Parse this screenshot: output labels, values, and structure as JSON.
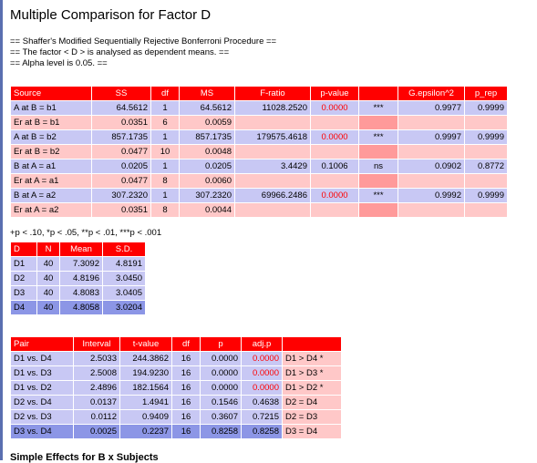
{
  "title": "Multiple Comparison for Factor D",
  "notes": [
    "== Shaffer's Modified Sequentially Rejective Bonferroni Procedure ==",
    "== The factor < D > is analysed as dependent means. ==",
    "== Alpha level is 0.05. =="
  ],
  "anova": {
    "headers": [
      "Source",
      "SS",
      "df",
      "MS",
      "F-ratio",
      "p-value",
      "",
      "G.epsilon^2",
      "p_rep"
    ],
    "rows": [
      [
        "A at B = b1",
        "64.5612",
        "1",
        "64.5612",
        "11028.2520",
        "0.0000",
        "***",
        "0.9977",
        "0.9999"
      ],
      [
        "Er at B = b1",
        "0.0351",
        "6",
        "0.0059",
        "",
        "",
        "",
        "",
        ""
      ],
      [
        "A at B = b2",
        "857.1735",
        "1",
        "857.1735",
        "179575.4618",
        "0.0000",
        "***",
        "0.9997",
        "0.9999"
      ],
      [
        "Er at B = b2",
        "0.0477",
        "10",
        "0.0048",
        "",
        "",
        "",
        "",
        ""
      ],
      [
        "B at A = a1",
        "0.0205",
        "1",
        "0.0205",
        "3.4429",
        "0.1006",
        "ns",
        "0.0902",
        "0.8772"
      ],
      [
        "Er at A = a1",
        "0.0477",
        "8",
        "0.0060",
        "",
        "",
        "",
        "",
        ""
      ],
      [
        "B at A = a2",
        "307.2320",
        "1",
        "307.2320",
        "69966.2486",
        "0.0000",
        "***",
        "0.9992",
        "0.9999"
      ],
      [
        "Er at A = a2",
        "0.0351",
        "8",
        "0.0044",
        "",
        "",
        "",
        "",
        ""
      ]
    ]
  },
  "footnote": "+p < .10, *p < .05, **p < .01, ***p < .001",
  "descriptive": {
    "headers": [
      "D",
      "N",
      "Mean",
      "S.D."
    ],
    "rows": [
      [
        "D1",
        "40",
        "7.3092",
        "4.8191"
      ],
      [
        "D2",
        "40",
        "4.8196",
        "3.0450"
      ],
      [
        "D3",
        "40",
        "4.8083",
        "3.0405"
      ],
      [
        "D4",
        "40",
        "4.8058",
        "3.0204"
      ]
    ]
  },
  "pairs": {
    "headers": [
      "Pair",
      "Interval",
      "t-value",
      "df",
      "p",
      "adj.p",
      ""
    ],
    "rows": [
      [
        "D1 vs. D4",
        "2.5033",
        "244.3862",
        "16",
        "0.0000",
        "0.0000",
        "D1 > D4 *"
      ],
      [
        "D1 vs. D3",
        "2.5008",
        "194.9230",
        "16",
        "0.0000",
        "0.0000",
        "D1 > D3 *"
      ],
      [
        "D1 vs. D2",
        "2.4896",
        "182.1564",
        "16",
        "0.0000",
        "0.0000",
        "D1 > D2 *"
      ],
      [
        "D2 vs. D4",
        "0.0137",
        "1.4941",
        "16",
        "0.1546",
        "0.4638",
        "D2 = D4"
      ],
      [
        "D2 vs. D3",
        "0.0112",
        "0.9409",
        "16",
        "0.3607",
        "0.7215",
        "D2 = D3"
      ],
      [
        "D3 vs. D4",
        "0.0025",
        "0.2237",
        "16",
        "0.8258",
        "0.8258",
        "D3 = D4"
      ]
    ]
  },
  "bottom_text": "Simple Effects for B x Subjects",
  "colors": {
    "header": "#ff0000",
    "row_blue": "#c8c8f4",
    "row_pink": "#ffc8c8",
    "accent_blue": "#8c96e6",
    "significant_text": "#ff0000"
  }
}
